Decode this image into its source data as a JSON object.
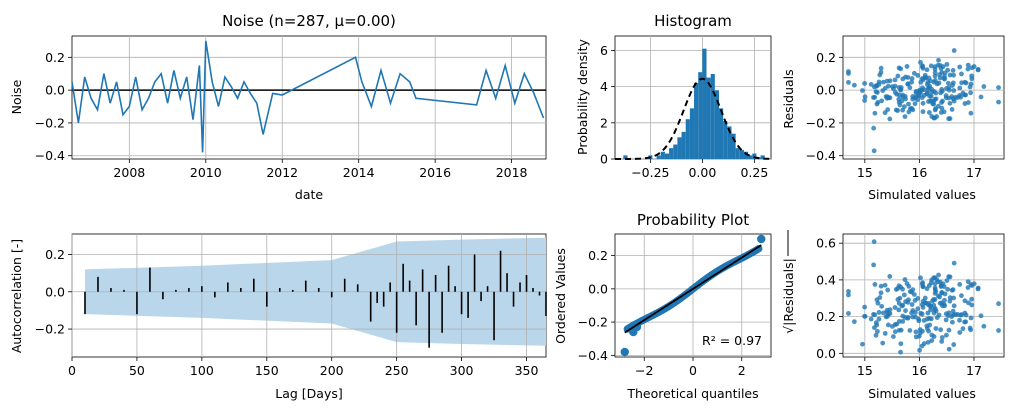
{
  "chart_data": [
    {
      "id": "noise",
      "type": "line",
      "title": "Noise (n=287, μ=0.00)",
      "xlabel": "date",
      "ylabel": "Noise",
      "x_range_years": [
        2006.5,
        2018.9
      ],
      "ylim": [
        -0.42,
        0.33
      ],
      "x_ticks": [
        "2008",
        "2010",
        "2012",
        "2014",
        "2016",
        "2018"
      ],
      "y_ticks": [
        "−0.4",
        "−0.2",
        "0.0",
        "0.2"
      ],
      "grid": true,
      "colors": {
        "series": "#1f77b4",
        "zero_line": "#000000"
      },
      "series": [
        {
          "x": [
            "2006-07",
            "2006-09",
            "2006-11",
            "2007-01",
            "2007-03",
            "2007-05",
            "2007-07",
            "2007-09",
            "2007-11",
            "2008-01",
            "2008-03",
            "2008-05",
            "2008-07",
            "2008-09",
            "2008-11",
            "2009-01",
            "2009-03",
            "2009-05",
            "2009-07",
            "2009-09",
            "2009-11",
            "2009-12",
            "2010-01",
            "2010-03",
            "2010-05",
            "2010-07",
            "2010-09",
            "2010-11",
            "2011-01",
            "2011-03",
            "2011-05",
            "2011-07",
            "2011-10",
            "2012-01",
            "2013-12",
            "2014-02",
            "2014-05",
            "2014-08",
            "2014-11",
            "2015-02",
            "2015-05",
            "2015-07",
            "2017-02",
            "2017-05",
            "2017-08",
            "2017-11",
            "2018-02",
            "2018-05",
            "2018-08",
            "2018-11"
          ],
          "values": [
            0.05,
            -0.2,
            0.08,
            -0.05,
            -0.12,
            0.1,
            -0.08,
            0.05,
            -0.15,
            -0.1,
            0.08,
            -0.12,
            -0.05,
            0.05,
            0.1,
            -0.08,
            0.12,
            -0.05,
            0.08,
            -0.18,
            0.15,
            -0.38,
            0.3,
            0.05,
            -0.1,
            0.08,
            0.02,
            -0.05,
            0.05,
            -0.02,
            -0.08,
            -0.27,
            -0.02,
            -0.03,
            0.2,
            0.05,
            -0.1,
            0.12,
            -0.08,
            0.1,
            0.05,
            -0.05,
            -0.09,
            0.12,
            -0.05,
            0.15,
            -0.08,
            0.1,
            -0.02,
            -0.17
          ]
        }
      ]
    },
    {
      "id": "histogram",
      "type": "bar",
      "title": "Histogram",
      "ylabel": "Probability density",
      "xlim": [
        -0.42,
        0.33
      ],
      "ylim": [
        0,
        6.8
      ],
      "x_ticks": [
        "−0.25",
        "0.00",
        "0.25"
      ],
      "y_ticks": [
        "0",
        "2",
        "4",
        "6"
      ],
      "grid": true,
      "colors": {
        "bars": "#1f77b4",
        "fit": "#000000"
      },
      "bin_width": 0.02,
      "bin_centers": [
        -0.37,
        -0.25,
        -0.21,
        -0.19,
        -0.17,
        -0.15,
        -0.13,
        -0.11,
        -0.09,
        -0.07,
        -0.05,
        -0.03,
        -0.01,
        0.01,
        0.03,
        0.05,
        0.07,
        0.09,
        0.11,
        0.13,
        0.15,
        0.17,
        0.19,
        0.21,
        0.23,
        0.25,
        0.27,
        0.29
      ],
      "density": [
        0.2,
        0.2,
        0.2,
        0.4,
        0.3,
        0.6,
        0.8,
        1.2,
        1.5,
        2.2,
        2.8,
        4.2,
        4.8,
        6.1,
        4.5,
        4.7,
        3.8,
        2.8,
        2.1,
        1.8,
        1.4,
        0.6,
        0.5,
        0.4,
        0.2,
        0.3,
        0.1,
        0.2
      ],
      "normal_fit": {
        "mean": 0.0,
        "std": 0.09
      }
    },
    {
      "id": "residuals",
      "type": "scatter",
      "ylabel": "Residuals",
      "xlabel": "Simulated values",
      "xlim": [
        14.6,
        17.55
      ],
      "ylim": [
        -0.42,
        0.33
      ],
      "x_ticks": [
        "15",
        "16",
        "17"
      ],
      "y_ticks": [
        "−0.4",
        "−0.2",
        "0.0",
        "0.2"
      ],
      "grid": true,
      "colors": {
        "points": "#1f77b4"
      },
      "n_points": 230,
      "x_mean": 16.1,
      "x_sd": 0.6,
      "y_sd": 0.1
    },
    {
      "id": "acf",
      "type": "bar",
      "xlabel": "Lag [Days]",
      "ylabel": "Autocorrelation [-]",
      "xlim": [
        0,
        365
      ],
      "ylim": [
        -0.35,
        0.31
      ],
      "x_ticks": [
        "0",
        "50",
        "100",
        "150",
        "200",
        "250",
        "300",
        "350"
      ],
      "y_ticks": [
        "−0.2",
        "0.0",
        "0.2"
      ],
      "grid": true,
      "colors": {
        "bars": "#000000",
        "confidence_band": "#bad6ea"
      },
      "confidence_band": {
        "lag": [
          10,
          100,
          200,
          250,
          300,
          365
        ],
        "upper": [
          0.12,
          0.14,
          0.17,
          0.27,
          0.28,
          0.29
        ]
      },
      "lags": [
        10,
        20,
        30,
        40,
        50,
        60,
        70,
        80,
        90,
        100,
        110,
        120,
        130,
        140,
        150,
        160,
        170,
        180,
        190,
        200,
        210,
        220,
        230,
        235,
        240,
        245,
        250,
        255,
        260,
        265,
        270,
        275,
        280,
        285,
        290,
        295,
        300,
        305,
        310,
        315,
        320,
        325,
        330,
        335,
        340,
        345,
        350,
        355,
        360,
        365
      ],
      "acf": [
        -0.12,
        0.08,
        0.02,
        0.01,
        -0.12,
        0.13,
        -0.04,
        0.01,
        0.02,
        0.03,
        -0.03,
        0.05,
        0.02,
        0.07,
        -0.08,
        0.02,
        0.01,
        0.06,
        0.02,
        -0.03,
        0.07,
        0.04,
        -0.16,
        -0.06,
        -0.08,
        0.05,
        -0.22,
        0.15,
        0.06,
        -0.18,
        0.12,
        -0.3,
        0.09,
        -0.22,
        0.14,
        0.03,
        -0.12,
        -0.14,
        0.2,
        -0.05,
        0.03,
        -0.26,
        0.22,
        0.1,
        -0.08,
        0.05,
        0.09,
        0.02,
        -0.02,
        -0.13
      ]
    },
    {
      "id": "probplot",
      "type": "scatter",
      "title": "Probability Plot",
      "xlabel": "Theoretical quantiles",
      "ylabel": "Ordered Values",
      "xlim": [
        -3.2,
        3.2
      ],
      "ylim": [
        -0.41,
        0.33
      ],
      "x_ticks": [
        "−2",
        "0",
        "2"
      ],
      "y_ticks": [
        "−0.4",
        "−0.2",
        "0.0",
        "0.2"
      ],
      "grid": true,
      "colors": {
        "points": "#1f77b4",
        "fit": "#000000"
      },
      "fit_line": {
        "slope": 0.094,
        "intercept": 0.0
      },
      "extremes": [
        [
          -2.8,
          -0.38
        ],
        [
          -2.45,
          -0.26
        ],
        [
          -2.3,
          -0.23
        ],
        [
          2.8,
          0.3
        ]
      ],
      "annotation": "R² = 0.97",
      "n_points": 287
    },
    {
      "id": "scale_location",
      "type": "scatter",
      "xlabel": "Simulated values",
      "ylabel": "√|Residuals|",
      "xlim": [
        14.6,
        17.55
      ],
      "ylim": [
        -0.02,
        0.65
      ],
      "x_ticks": [
        "15",
        "16",
        "17"
      ],
      "y_ticks": [
        "0.0",
        "0.2",
        "0.4",
        "0.6"
      ],
      "grid": true,
      "colors": {
        "points": "#1f77b4"
      },
      "n_points": 230
    }
  ]
}
